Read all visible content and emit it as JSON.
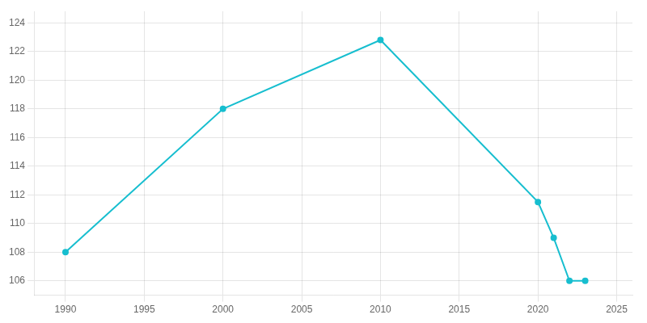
{
  "chart_data": {
    "type": "line",
    "x": [
      1990,
      2000,
      2010,
      2020,
      2021,
      2022,
      2023
    ],
    "values": [
      108,
      118,
      122.8,
      111.5,
      109,
      106,
      106
    ],
    "color": "#17becf",
    "marker": "circle",
    "xlim": [
      1988,
      2026
    ],
    "ylim": [
      105,
      124.8
    ],
    "xticks": [
      1990,
      1995,
      2000,
      2005,
      2010,
      2015,
      2020,
      2025
    ],
    "yticks": [
      106,
      108,
      110,
      112,
      114,
      116,
      118,
      120,
      122,
      124
    ],
    "grid": true
  }
}
